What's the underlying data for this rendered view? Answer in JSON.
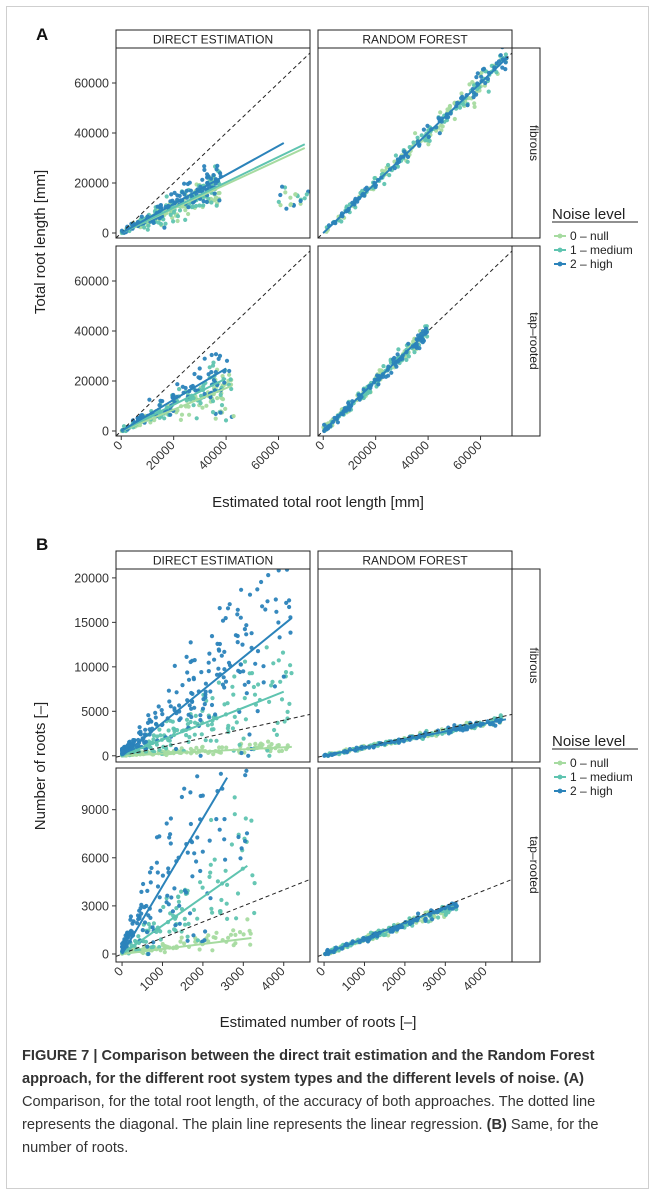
{
  "panels": [
    {
      "letter": "A",
      "x_label": "Estimated total root length [mm]",
      "y_label": "Total root length [mm]",
      "column_strips": [
        "DIRECT ESTIMATION",
        "RANDOM FOREST"
      ],
      "row_strips": [
        "fibrous",
        "tap–rooted"
      ],
      "legend": {
        "title": "Noise level",
        "entries": [
          "0 – null",
          "1 – medium",
          "2 – high"
        ]
      }
    },
    {
      "letter": "B",
      "x_label": "Estimated number of roots [–]",
      "y_label": "Number of roots [–]",
      "column_strips": [
        "DIRECT ESTIMATION",
        "RANDOM FOREST"
      ],
      "row_strips": [
        "fibrous",
        "tap–rooted"
      ],
      "legend": {
        "title": "Noise level",
        "entries": [
          "0 – null",
          "1 – medium",
          "2 – high"
        ]
      }
    }
  ],
  "colors": {
    "noise_0": "#a6dba0",
    "noise_1": "#5fc4b0",
    "noise_2": "#2b83ba",
    "diagonal": "#222222"
  },
  "chart_data": [
    {
      "type": "scatter",
      "panel": "A",
      "facets": "columns: method; rows: root system type",
      "xlabel": "Estimated total root length [mm]",
      "ylabel": "Total root length [mm]",
      "x_ticks": [
        0,
        20000,
        40000,
        60000
      ],
      "y_ticks": [
        0,
        20000,
        40000,
        60000
      ],
      "xlim": [
        -2000,
        72000
      ],
      "ylim": [
        -2000,
        74000
      ],
      "diagonal": true,
      "series": [
        "0 – null",
        "1 – medium",
        "2 – high"
      ],
      "regression_lines": [
        {
          "method": "DIRECT ESTIMATION",
          "root_type": "fibrous",
          "noise": "0 – null",
          "x": [
            0,
            70000
          ],
          "y": [
            0,
            34000
          ]
        },
        {
          "method": "DIRECT ESTIMATION",
          "root_type": "fibrous",
          "noise": "1 – medium",
          "x": [
            0,
            70000
          ],
          "y": [
            0,
            35500
          ]
        },
        {
          "method": "DIRECT ESTIMATION",
          "root_type": "fibrous",
          "noise": "2 – high",
          "x": [
            0,
            62000
          ],
          "y": [
            0,
            36000
          ]
        },
        {
          "method": "DIRECT ESTIMATION",
          "root_type": "tap–rooted",
          "noise": "0 – null",
          "x": [
            0,
            42000
          ],
          "y": [
            0,
            18000
          ]
        },
        {
          "method": "DIRECT ESTIMATION",
          "root_type": "tap–rooted",
          "noise": "1 – medium",
          "x": [
            0,
            40000
          ],
          "y": [
            0,
            21000
          ]
        },
        {
          "method": "DIRECT ESTIMATION",
          "root_type": "tap–rooted",
          "noise": "2 – high",
          "x": [
            0,
            40000
          ],
          "y": [
            0,
            25000
          ]
        },
        {
          "method": "RANDOM FOREST",
          "root_type": "fibrous",
          "noise": "all",
          "x": [
            0,
            70000
          ],
          "y": [
            0,
            70000
          ]
        },
        {
          "method": "RANDOM FOREST",
          "root_type": "tap–rooted",
          "noise": "all",
          "x": [
            0,
            40000
          ],
          "y": [
            0,
            40000
          ]
        }
      ]
    },
    {
      "type": "scatter",
      "panel": "B",
      "facets": "columns: method; rows: root system type",
      "xlabel": "Estimated number of roots [–]",
      "ylabel": "Number of roots [–]",
      "x_ticks": [
        0,
        1000,
        2000,
        3000,
        4000
      ],
      "y_ticks_fibrous": [
        0,
        5000,
        10000,
        15000,
        20000
      ],
      "y_ticks_taprooted": [
        0,
        3000,
        6000,
        9000
      ],
      "xlim": [
        -150,
        4650
      ],
      "ylim_fibrous": [
        -700,
        21000
      ],
      "ylim_taprooted": [
        -500,
        11600
      ],
      "diagonal": true,
      "series": [
        "0 – null",
        "1 – medium",
        "2 – high"
      ],
      "regression_lines": [
        {
          "method": "DIRECT ESTIMATION",
          "root_type": "fibrous",
          "noise": "0 – null",
          "x": [
            0,
            4200
          ],
          "y": [
            0,
            1000
          ]
        },
        {
          "method": "DIRECT ESTIMATION",
          "root_type": "fibrous",
          "noise": "1 – medium",
          "x": [
            0,
            4000
          ],
          "y": [
            0,
            7200
          ]
        },
        {
          "method": "DIRECT ESTIMATION",
          "root_type": "fibrous",
          "noise": "2 – high",
          "x": [
            0,
            4200
          ],
          "y": [
            0,
            15500
          ]
        },
        {
          "method": "DIRECT ESTIMATION",
          "root_type": "tap–rooted",
          "noise": "0 – null",
          "x": [
            0,
            3200
          ],
          "y": [
            0,
            1000
          ]
        },
        {
          "method": "DIRECT ESTIMATION",
          "root_type": "tap–rooted",
          "noise": "1 – medium",
          "x": [
            0,
            3100
          ],
          "y": [
            0,
            5500
          ]
        },
        {
          "method": "DIRECT ESTIMATION",
          "root_type": "tap–rooted",
          "noise": "2 – high",
          "x": [
            0,
            2600
          ],
          "y": [
            0,
            11000
          ]
        },
        {
          "method": "RANDOM FOREST",
          "root_type": "fibrous",
          "noise": "all",
          "x": [
            0,
            4500
          ],
          "y": [
            0,
            4100
          ]
        },
        {
          "method": "RANDOM FOREST",
          "root_type": "tap–rooted",
          "noise": "all",
          "x": [
            0,
            3300
          ],
          "y": [
            0,
            3200
          ]
        }
      ]
    }
  ],
  "caption": {
    "label": "FIGURE 7 | Comparison between the direct trait estimation and the Random Forest approach, for the different root system types and the different levels of noise.",
    "part_a_marker": "(A)",
    "part_a_text": " Comparison, for the total root length, of the accuracy of both approaches. The dotted line represents the diagonal. The plain line represents the linear regression. ",
    "part_b_marker": "(B)",
    "part_b_text": " Same, for the number of roots."
  }
}
